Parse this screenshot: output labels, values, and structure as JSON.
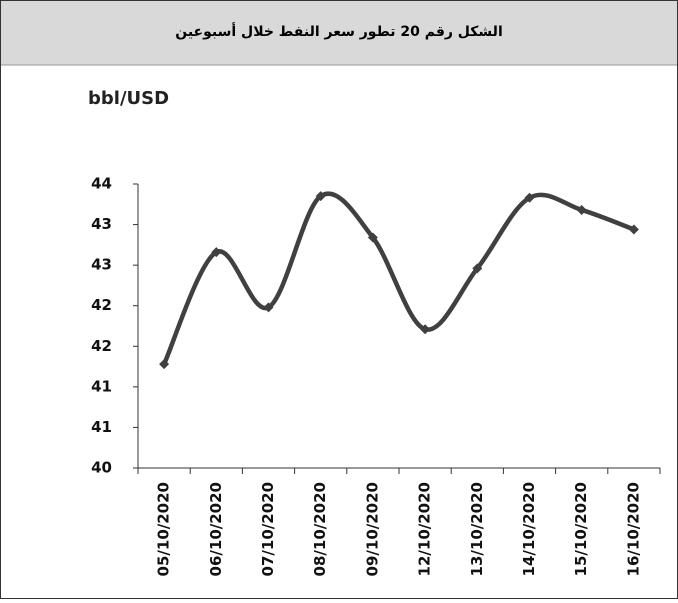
{
  "chart_data": {
    "type": "line",
    "title": "الشكل رقم 20 تطور سعر النفط خلال أسبوعين",
    "y_label": "bbl/USD",
    "categories": [
      "05/10/2020",
      "06/10/2020",
      "07/10/2020",
      "08/10/2020",
      "09/10/2020",
      "12/10/2020",
      "13/10/2020",
      "14/10/2020",
      "15/10/2020",
      "16/10/2020"
    ],
    "values": [
      41.28,
      42.66,
      41.98,
      43.35,
      42.84,
      41.71,
      42.46,
      43.33,
      43.18,
      42.94
    ],
    "color": "#404040",
    "ylim": [
      40,
      43.5
    ],
    "yticks": [
      40,
      {
        "value": 40.5,
        "label": "41"
      },
      41,
      {
        "value": 41.5,
        "label": "42"
      },
      42,
      {
        "value": 42.5,
        "label": "43"
      },
      43,
      {
        "value": 43.5,
        "label": "44"
      }
    ]
  }
}
